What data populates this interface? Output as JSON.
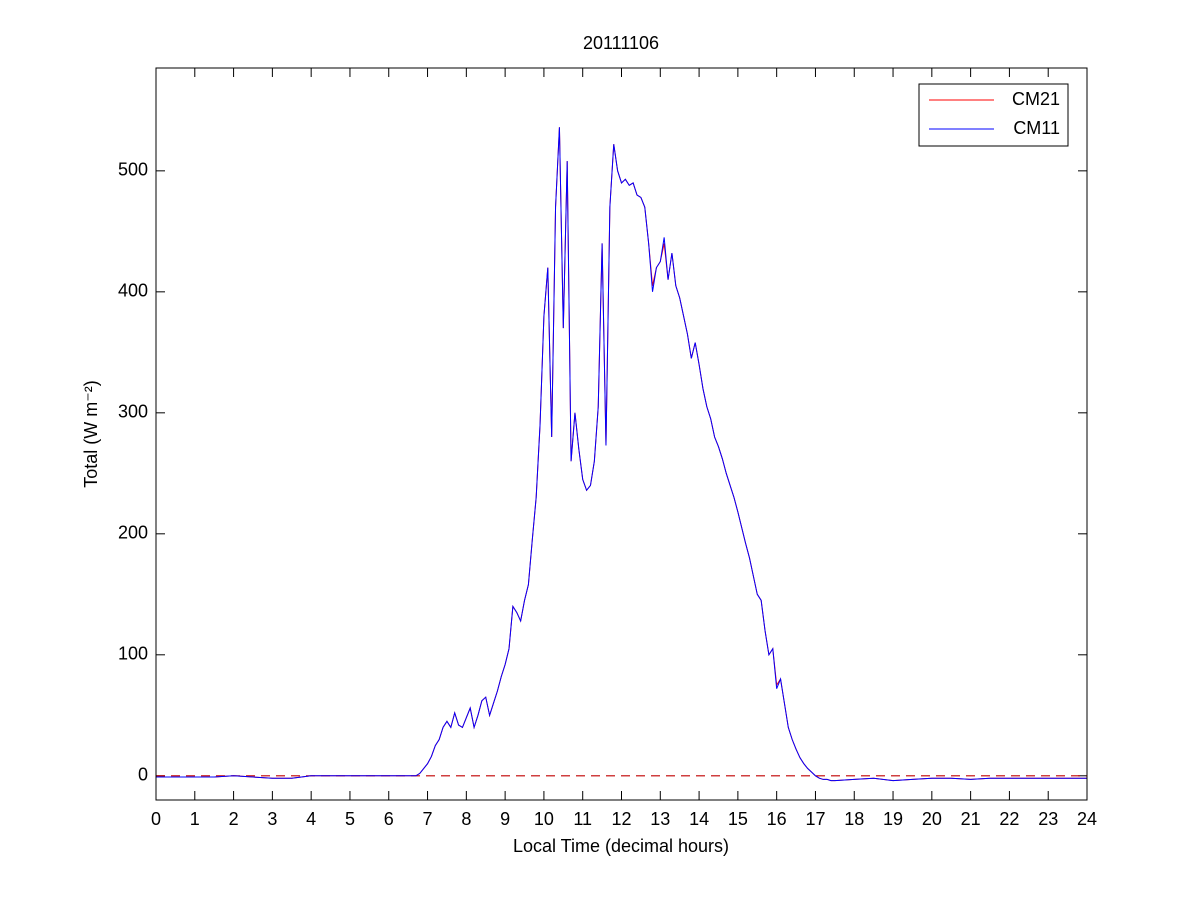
{
  "chart_data": {
    "type": "line",
    "title": "20111106",
    "xlabel": "Local Time (decimal hours)",
    "ylabel": "Total (W m⁻²)",
    "x": [
      0,
      0.5,
      1,
      1.5,
      2,
      2.5,
      3,
      3.5,
      4,
      4.5,
      5,
      5.5,
      6,
      6.5,
      6.6,
      6.7,
      6.8,
      6.9,
      7.0,
      7.1,
      7.2,
      7.3,
      7.4,
      7.5,
      7.6,
      7.7,
      7.8,
      7.9,
      8.0,
      8.1,
      8.2,
      8.3,
      8.4,
      8.5,
      8.6,
      8.7,
      8.8,
      8.9,
      9.0,
      9.1,
      9.2,
      9.3,
      9.4,
      9.5,
      9.6,
      9.7,
      9.8,
      9.9,
      10.0,
      10.1,
      10.2,
      10.3,
      10.4,
      10.5,
      10.6,
      10.7,
      10.8,
      10.9,
      11.0,
      11.1,
      11.2,
      11.3,
      11.4,
      11.5,
      11.6,
      11.7,
      11.8,
      11.9,
      12.0,
      12.1,
      12.2,
      12.3,
      12.4,
      12.5,
      12.6,
      12.7,
      12.8,
      12.9,
      13.0,
      13.1,
      13.2,
      13.3,
      13.4,
      13.5,
      13.6,
      13.7,
      13.8,
      13.9,
      14.0,
      14.1,
      14.2,
      14.3,
      14.4,
      14.5,
      14.6,
      14.7,
      14.8,
      14.9,
      15.0,
      15.1,
      15.2,
      15.3,
      15.4,
      15.5,
      15.6,
      15.7,
      15.8,
      15.9,
      16.0,
      16.1,
      16.2,
      16.3,
      16.4,
      16.5,
      16.6,
      16.7,
      16.8,
      16.9,
      17.0,
      17.1,
      17.2,
      17.3,
      17.4,
      17.5,
      18,
      18.5,
      19,
      19.5,
      20,
      20.5,
      21,
      21.5,
      22,
      22.5,
      23,
      23.5,
      24
    ],
    "series": [
      {
        "name": "CM21",
        "color": "#ff0000",
        "values": [
          -1,
          -1,
          -1,
          -1,
          0,
          -1,
          -2,
          -2,
          0,
          0,
          0,
          0,
          0,
          0,
          0,
          0,
          2,
          6,
          10,
          16,
          25,
          30,
          40,
          45,
          40,
          52,
          42,
          40,
          48,
          56,
          40,
          50,
          62,
          65,
          50,
          60,
          70,
          82,
          92,
          105,
          140,
          135,
          128,
          145,
          158,
          195,
          230,
          290,
          380,
          420,
          280,
          470,
          536,
          370,
          508,
          260,
          300,
          270,
          245,
          236,
          240,
          260,
          305,
          440,
          273,
          470,
          522,
          500,
          490,
          493,
          488,
          490,
          480,
          478,
          470,
          440,
          405,
          420,
          425,
          440,
          410,
          432,
          405,
          395,
          380,
          365,
          345,
          358,
          340,
          320,
          305,
          295,
          280,
          272,
          262,
          250,
          240,
          230,
          218,
          205,
          192,
          180,
          165,
          150,
          145,
          120,
          100,
          105,
          75,
          80,
          60,
          40,
          30,
          22,
          15,
          10,
          6,
          3,
          0,
          -2,
          -3,
          -3,
          -4,
          -4,
          -3,
          -2,
          -4,
          -3,
          -2,
          -2,
          -3,
          -2,
          -2,
          -2,
          -2,
          -2,
          -2
        ]
      },
      {
        "name": "CM11",
        "color": "#0000ff",
        "values": [
          -1,
          -1,
          -1,
          -1,
          0,
          -1,
          -2,
          -2,
          0,
          0,
          0,
          0,
          0,
          0,
          0,
          0,
          2,
          6,
          10,
          16,
          25,
          30,
          40,
          45,
          40,
          52,
          42,
          40,
          48,
          56,
          40,
          50,
          62,
          65,
          50,
          60,
          70,
          82,
          92,
          105,
          140,
          135,
          128,
          145,
          158,
          195,
          230,
          290,
          380,
          420,
          280,
          470,
          536,
          370,
          508,
          260,
          300,
          270,
          245,
          236,
          240,
          260,
          305,
          440,
          273,
          470,
          522,
          500,
          490,
          493,
          488,
          490,
          480,
          478,
          470,
          440,
          400,
          420,
          425,
          445,
          410,
          432,
          405,
          395,
          380,
          365,
          345,
          358,
          340,
          320,
          305,
          295,
          280,
          272,
          262,
          250,
          240,
          230,
          218,
          205,
          192,
          180,
          165,
          150,
          145,
          120,
          100,
          105,
          72,
          80,
          60,
          40,
          30,
          22,
          15,
          10,
          6,
          3,
          0,
          -2,
          -3,
          -3,
          -4,
          -4,
          -3,
          -2,
          -4,
          -3,
          -2,
          -2,
          -3,
          -2,
          -2,
          -2,
          -2,
          -2,
          -2
        ]
      }
    ],
    "xlim": [
      0,
      24
    ],
    "xticks": [
      0,
      1,
      2,
      3,
      4,
      5,
      6,
      7,
      8,
      9,
      10,
      11,
      12,
      13,
      14,
      15,
      16,
      17,
      18,
      19,
      20,
      21,
      22,
      23,
      24
    ],
    "ylim": [
      -20,
      585
    ],
    "yticks": [
      0,
      100,
      200,
      300,
      400,
      500
    ],
    "reference_line": {
      "value": 0,
      "color": "#c00000"
    },
    "legend": "northeast"
  }
}
